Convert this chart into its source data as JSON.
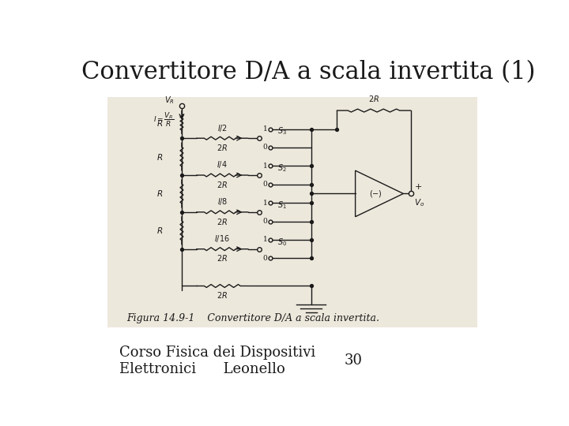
{
  "title": "Convertitore D/A a scala invertita (1)",
  "title_fontsize": 22,
  "footer_line1": "Corso Fisica dei Dispositivi",
  "footer_line2": "Elettronici      Leonello",
  "footer_number": "30",
  "footer_fontsize": 13,
  "bg_color": "#ffffff",
  "circuit_bg": "#ede8dc",
  "caption": "Figura 14.9-1    Convertitore D/A a scala invertita.",
  "caption_fontsize": 9,
  "line_color": "#1a1a1a"
}
